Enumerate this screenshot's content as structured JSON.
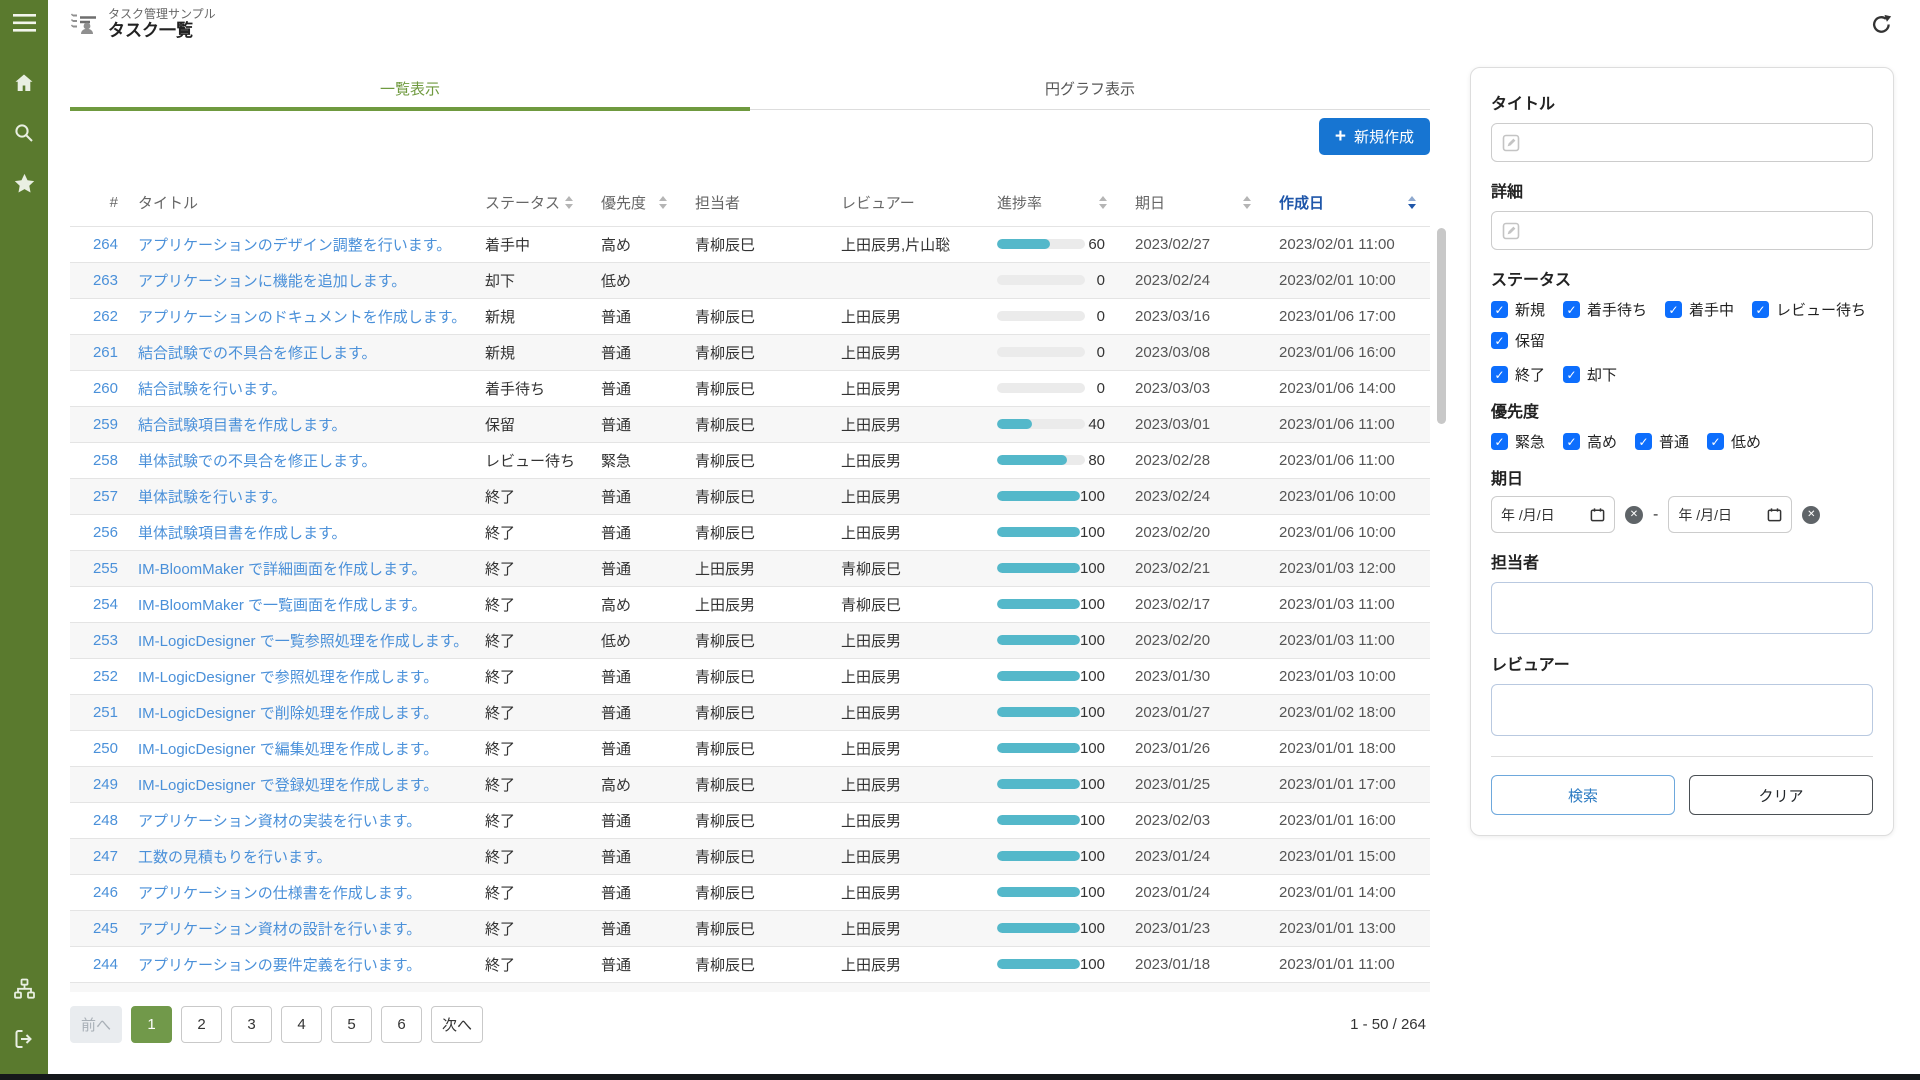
{
  "app": {
    "subtitle": "タスク管理サンプル",
    "title": "タスク一覧"
  },
  "colors": {
    "sidebar-green": "#5a7a2e",
    "accent-green": "#6f9a3f",
    "page-active-green": "#71994a",
    "link-blue": "#4a90d9",
    "button-blue": "#1775d2",
    "checkbox-blue": "#0d6efd",
    "sorted-blue": "#1f56a9",
    "progress-teal": "#54b8ca"
  },
  "sidebar": {
    "icons": [
      "hamburger-icon",
      "home-icon",
      "search-icon",
      "star-icon"
    ],
    "bottom_icons": [
      "sitemap-icon",
      "logout-icon"
    ]
  },
  "header_icons": [
    "task-list-icon",
    "refresh-icon"
  ],
  "tabs": [
    {
      "name": "list-view",
      "label": "一覧表示",
      "active": true
    },
    {
      "name": "pie-chart-view",
      "label": "円グラフ表示",
      "active": false
    }
  ],
  "toolbar": {
    "create_label": "新規作成",
    "create_icon": "plus-icon"
  },
  "table": {
    "columns": [
      {
        "label": "#",
        "sortable": false
      },
      {
        "label": "タイトル",
        "sortable": false
      },
      {
        "label": "ステータス",
        "sortable": true
      },
      {
        "label": "優先度",
        "sortable": true
      },
      {
        "label": "担当者",
        "sortable": false
      },
      {
        "label": "レビュアー",
        "sortable": false
      },
      {
        "label": "進捗率",
        "sortable": true
      },
      {
        "label": "期日",
        "sortable": true
      },
      {
        "label": "作成日",
        "sortable": true,
        "sorted": true
      }
    ],
    "rows": [
      {
        "id": "264",
        "title": "アプリケーションのデザイン調整を行います。",
        "status": "着手中",
        "priority": "高め",
        "assignee": "青柳辰巳",
        "reviewer": "上田辰男,片山聡",
        "progress": 60,
        "due": "2023/02/27",
        "created": "2023/02/01 11:00"
      },
      {
        "id": "263",
        "title": "アプリケーションに機能を追加します。",
        "status": "却下",
        "priority": "低め",
        "assignee": "",
        "reviewer": "",
        "progress": 0,
        "due": "2023/02/24",
        "created": "2023/02/01 10:00"
      },
      {
        "id": "262",
        "title": "アプリケーションのドキュメントを作成します。",
        "status": "新規",
        "priority": "普通",
        "assignee": "青柳辰巳",
        "reviewer": "上田辰男",
        "progress": 0,
        "due": "2023/03/16",
        "created": "2023/01/06 17:00"
      },
      {
        "id": "261",
        "title": "結合試験での不具合を修正します。",
        "status": "新規",
        "priority": "普通",
        "assignee": "青柳辰巳",
        "reviewer": "上田辰男",
        "progress": 0,
        "due": "2023/03/08",
        "created": "2023/01/06 16:00"
      },
      {
        "id": "260",
        "title": "結合試験を行います。",
        "status": "着手待ち",
        "priority": "普通",
        "assignee": "青柳辰巳",
        "reviewer": "上田辰男",
        "progress": 0,
        "due": "2023/03/03",
        "created": "2023/01/06 14:00"
      },
      {
        "id": "259",
        "title": "結合試験項目書を作成します。",
        "status": "保留",
        "priority": "普通",
        "assignee": "青柳辰巳",
        "reviewer": "上田辰男",
        "progress": 40,
        "due": "2023/03/01",
        "created": "2023/01/06 11:00"
      },
      {
        "id": "258",
        "title": "単体試験での不具合を修正します。",
        "status": "レビュー待ち",
        "priority": "緊急",
        "assignee": "青柳辰巳",
        "reviewer": "上田辰男",
        "progress": 80,
        "due": "2023/02/28",
        "created": "2023/01/06 11:00"
      },
      {
        "id": "257",
        "title": "単体試験を行います。",
        "status": "終了",
        "priority": "普通",
        "assignee": "青柳辰巳",
        "reviewer": "上田辰男",
        "progress": 100,
        "due": "2023/02/24",
        "created": "2023/01/06 10:00"
      },
      {
        "id": "256",
        "title": "単体試験項目書を作成します。",
        "status": "終了",
        "priority": "普通",
        "assignee": "青柳辰巳",
        "reviewer": "上田辰男",
        "progress": 100,
        "due": "2023/02/20",
        "created": "2023/01/06 10:00"
      },
      {
        "id": "255",
        "title": "IM-BloomMaker で詳細画面を作成します。",
        "status": "終了",
        "priority": "普通",
        "assignee": "上田辰男",
        "reviewer": "青柳辰巳",
        "progress": 100,
        "due": "2023/02/21",
        "created": "2023/01/03 12:00"
      },
      {
        "id": "254",
        "title": "IM-BloomMaker で一覧画面を作成します。",
        "status": "終了",
        "priority": "高め",
        "assignee": "上田辰男",
        "reviewer": "青柳辰巳",
        "progress": 100,
        "due": "2023/02/17",
        "created": "2023/01/03 11:00"
      },
      {
        "id": "253",
        "title": "IM-LogicDesigner で一覧参照処理を作成します。",
        "status": "終了",
        "priority": "低め",
        "assignee": "青柳辰巳",
        "reviewer": "上田辰男",
        "progress": 100,
        "due": "2023/02/20",
        "created": "2023/01/03 11:00"
      },
      {
        "id": "252",
        "title": "IM-LogicDesigner で参照処理を作成します。",
        "status": "終了",
        "priority": "普通",
        "assignee": "青柳辰巳",
        "reviewer": "上田辰男",
        "progress": 100,
        "due": "2023/01/30",
        "created": "2023/01/03 10:00"
      },
      {
        "id": "251",
        "title": "IM-LogicDesigner で削除処理を作成します。",
        "status": "終了",
        "priority": "普通",
        "assignee": "青柳辰巳",
        "reviewer": "上田辰男",
        "progress": 100,
        "due": "2023/01/27",
        "created": "2023/01/02 18:00"
      },
      {
        "id": "250",
        "title": "IM-LogicDesigner で編集処理を作成します。",
        "status": "終了",
        "priority": "普通",
        "assignee": "青柳辰巳",
        "reviewer": "上田辰男",
        "progress": 100,
        "due": "2023/01/26",
        "created": "2023/01/01 18:00"
      },
      {
        "id": "249",
        "title": "IM-LogicDesigner で登録処理を作成します。",
        "status": "終了",
        "priority": "高め",
        "assignee": "青柳辰巳",
        "reviewer": "上田辰男",
        "progress": 100,
        "due": "2023/01/25",
        "created": "2023/01/01 17:00"
      },
      {
        "id": "248",
        "title": "アプリケーション資材の実装を行います。",
        "status": "終了",
        "priority": "普通",
        "assignee": "青柳辰巳",
        "reviewer": "上田辰男",
        "progress": 100,
        "due": "2023/02/03",
        "created": "2023/01/01 16:00"
      },
      {
        "id": "247",
        "title": "工数の見積もりを行います。",
        "status": "終了",
        "priority": "普通",
        "assignee": "青柳辰巳",
        "reviewer": "上田辰男",
        "progress": 100,
        "due": "2023/01/24",
        "created": "2023/01/01 15:00"
      },
      {
        "id": "246",
        "title": "アプリケーションの仕様書を作成します。",
        "status": "終了",
        "priority": "普通",
        "assignee": "青柳辰巳",
        "reviewer": "上田辰男",
        "progress": 100,
        "due": "2023/01/24",
        "created": "2023/01/01 14:00"
      },
      {
        "id": "245",
        "title": "アプリケーション資材の設計を行います。",
        "status": "終了",
        "priority": "普通",
        "assignee": "青柳辰巳",
        "reviewer": "上田辰男",
        "progress": 100,
        "due": "2023/01/23",
        "created": "2023/01/01 13:00"
      },
      {
        "id": "244",
        "title": "アプリケーションの要件定義を行います。",
        "status": "終了",
        "priority": "普通",
        "assignee": "青柳辰巳",
        "reviewer": "上田辰男",
        "progress": 100,
        "due": "2023/01/18",
        "created": "2023/01/01 11:00"
      }
    ]
  },
  "pagination": {
    "prev_label": "前へ",
    "next_label": "次へ",
    "pages": [
      "1",
      "2",
      "3",
      "4",
      "5",
      "6"
    ],
    "active_page": "1",
    "info": "1 - 50 / 264"
  },
  "filter": {
    "title_label": "タイトル",
    "detail_label": "詳細",
    "status_label": "ステータス",
    "status_options": [
      "新規",
      "着手待ち",
      "着手中",
      "レビュー待ち",
      "保留",
      "終了",
      "却下"
    ],
    "priority_label": "優先度",
    "priority_options": [
      "緊急",
      "高め",
      "普通",
      "低め"
    ],
    "due_label": "期日",
    "date_placeholder": "年 /月/日",
    "range_separator": "-",
    "assignee_label": "担当者",
    "reviewer_label": "レビュアー",
    "search_label": "検索",
    "clear_label": "クリア"
  }
}
